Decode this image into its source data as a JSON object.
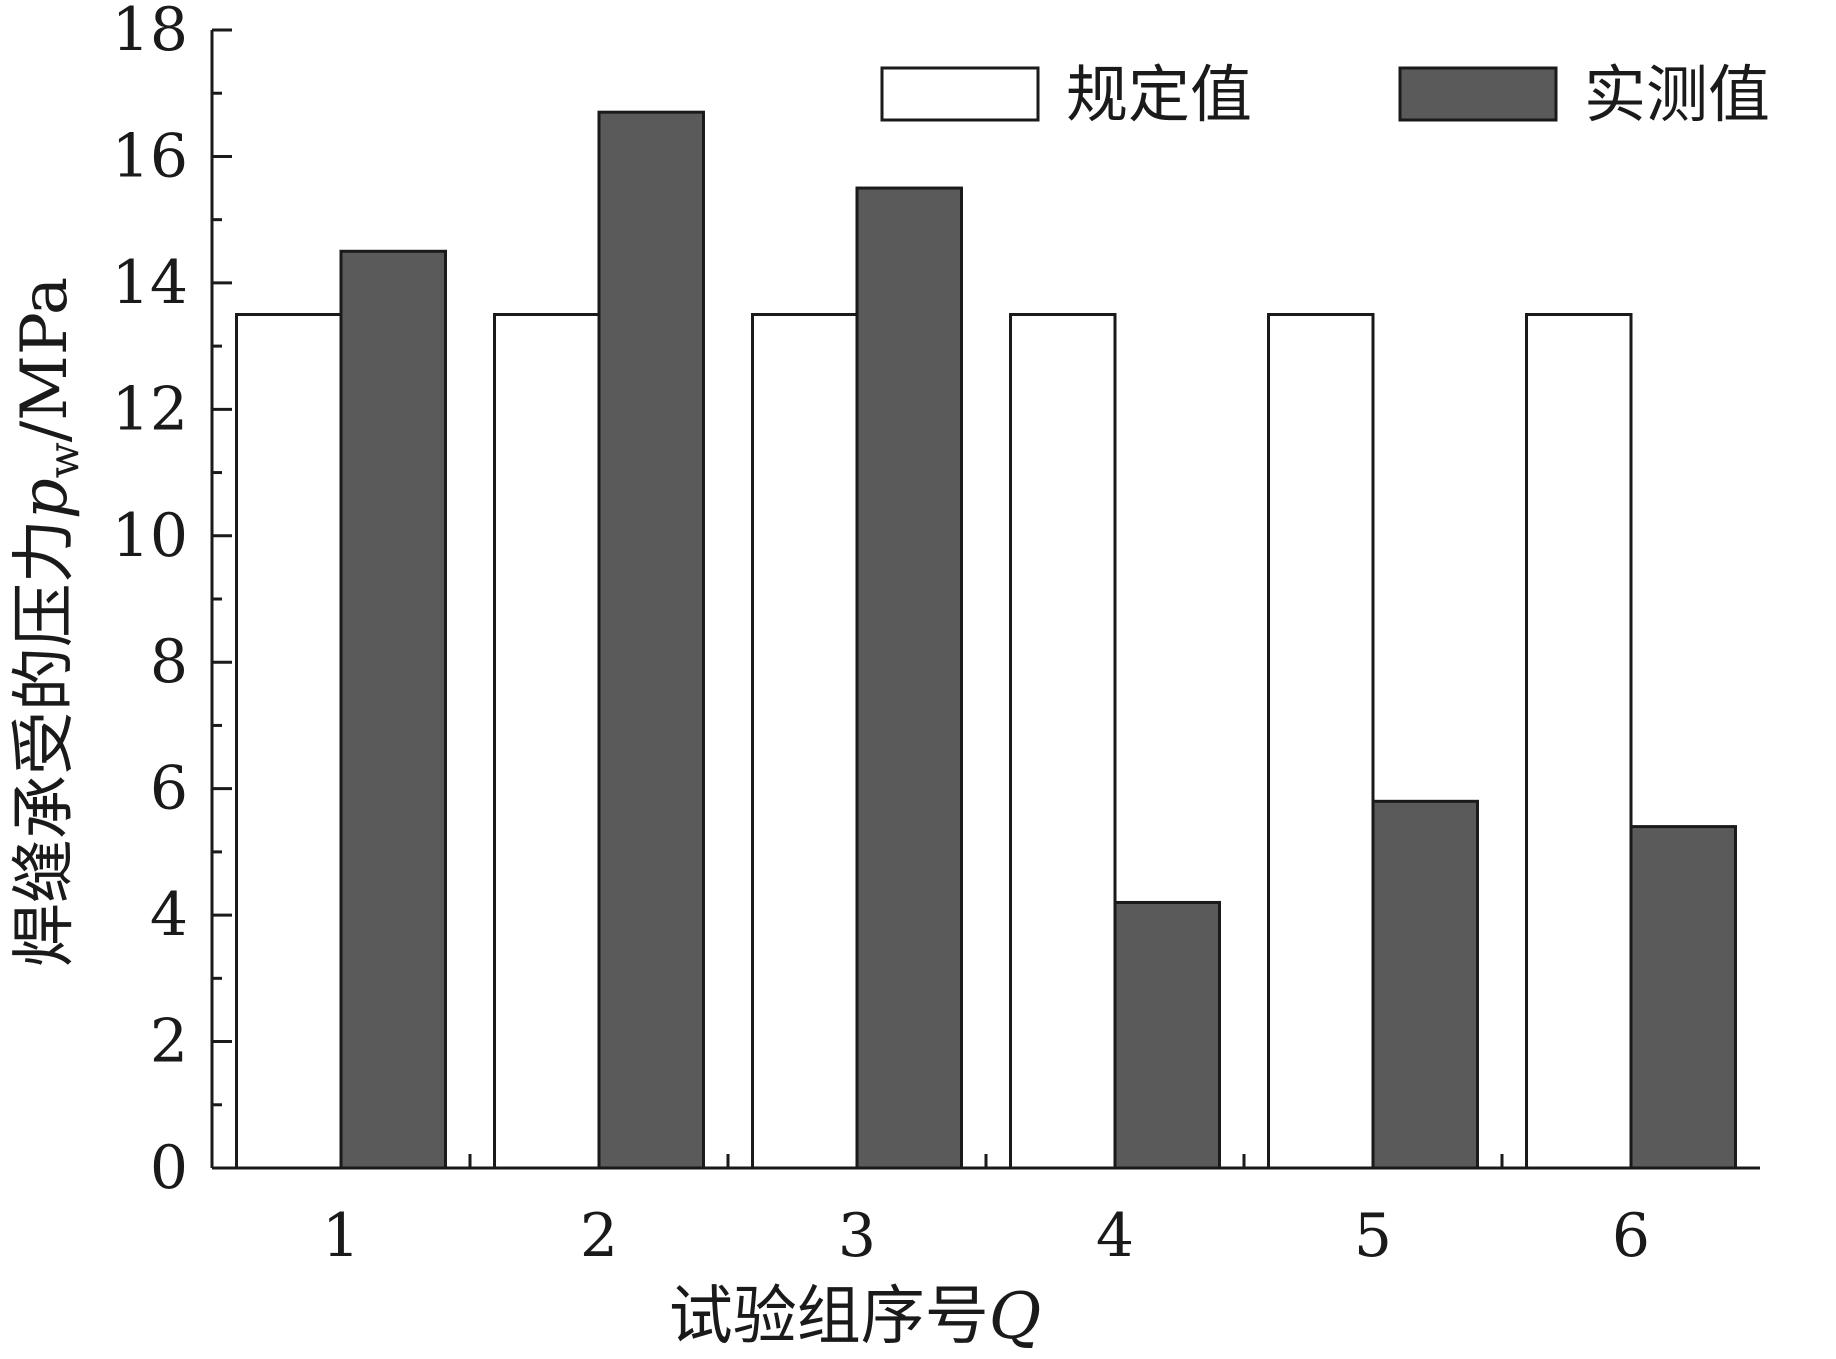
{
  "chart_data": {
    "type": "bar",
    "categories": [
      "1",
      "2",
      "3",
      "4",
      "5",
      "6"
    ],
    "series": [
      {
        "name": "规定值",
        "values": [
          13.5,
          13.5,
          13.5,
          13.5,
          13.5,
          13.5
        ],
        "color": "#ffffff"
      },
      {
        "name": "实测值",
        "values": [
          14.5,
          16.7,
          15.5,
          4.2,
          5.8,
          5.4
        ],
        "color": "#5a5a5a"
      }
    ],
    "title": "",
    "xlabel": "试验组序号",
    "xlabel_var": "Q",
    "ylabel": "焊缝承受的压力",
    "ylabel_var": "p",
    "ylabel_sub": "w",
    "ylabel_unit": "/MPa",
    "ylim": [
      0,
      18
    ],
    "yticks": [
      "0",
      "2",
      "4",
      "6",
      "8",
      "10",
      "12",
      "14",
      "16",
      "18"
    ],
    "grid": false,
    "legend_position": "top-right"
  }
}
